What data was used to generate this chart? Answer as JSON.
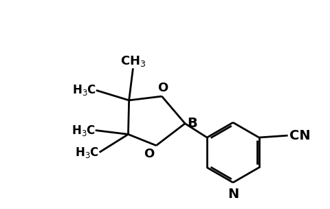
{
  "background_color": "#ffffff",
  "line_color": "#000000",
  "line_width": 2.0,
  "font_size": 12,
  "figsize": [
    4.8,
    3.04
  ],
  "dpi": 100,
  "xlim": [
    -2.2,
    5.2
  ],
  "ylim": [
    -3.2,
    2.0
  ]
}
